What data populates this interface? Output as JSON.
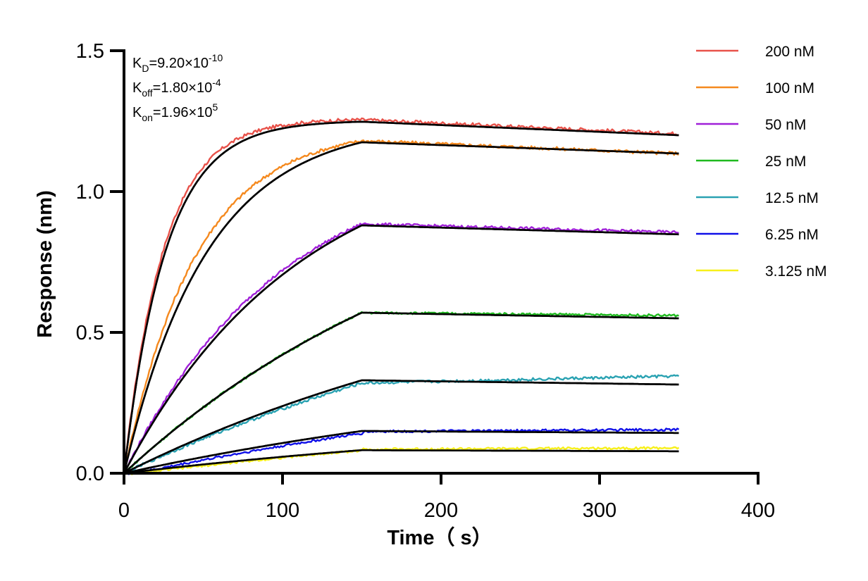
{
  "chart_data": {
    "type": "line",
    "title": "",
    "xlabel": "Time（ s）",
    "ylabel": "Response (nm)",
    "xlim": [
      0,
      400
    ],
    "ylim": [
      0,
      1.5
    ],
    "x_ticks": [
      "0",
      "100",
      "200",
      "300",
      "400"
    ],
    "y_ticks": [
      "0.0",
      "0.5",
      "1.0",
      "1.5"
    ],
    "grid": false,
    "legend_position": "top-right",
    "association_end_s": 150,
    "dissociation_end_s": 350,
    "annotations": {
      "kd": {
        "base": "K",
        "sub": "D",
        "text": "=9.20×10",
        "sup": "-10"
      },
      "koff": {
        "base": "K",
        "sub": "off",
        "text": "=1.80×10",
        "sup": "-4"
      },
      "kon": {
        "base": "K",
        "sub": "on",
        "text": "=1.96×10",
        "sup": "5"
      }
    },
    "fit_line_color": "#000000",
    "series": [
      {
        "name": "200 nM",
        "color": "#e8524a",
        "plateau_at_150s": 1.255,
        "response_at_350s": 1.205
      },
      {
        "name": "100 nM",
        "color": "#f5891e",
        "plateau_at_150s": 1.18,
        "response_at_350s": 1.135
      },
      {
        "name": "50 nM",
        "color": "#a020d8",
        "plateau_at_150s": 0.885,
        "response_at_350s": 0.855
      },
      {
        "name": "25 nM",
        "color": "#1fba1f",
        "plateau_at_150s": 0.57,
        "response_at_350s": 0.56
      },
      {
        "name": "12.5 nM",
        "color": "#2aa2b2",
        "plateau_at_150s": 0.32,
        "response_at_350s": 0.345
      },
      {
        "name": "6.25 nM",
        "color": "#1010e8",
        "plateau_at_150s": 0.148,
        "response_at_350s": 0.155
      },
      {
        "name": "3.125 nM",
        "color": "#f7f01a",
        "plateau_at_150s": 0.085,
        "response_at_350s": 0.09
      }
    ],
    "fit_curves": [
      {
        "for": "200 nM",
        "plateau_at_150s": 1.248,
        "response_at_350s": 1.2
      },
      {
        "for": "100 nM",
        "plateau_at_150s": 1.175,
        "response_at_350s": 1.135
      },
      {
        "for": "50 nM",
        "plateau_at_150s": 0.88,
        "response_at_350s": 0.848
      },
      {
        "for": "25 nM",
        "plateau_at_150s": 0.57,
        "response_at_350s": 0.55
      },
      {
        "for": "12.5 nM",
        "plateau_at_150s": 0.33,
        "response_at_350s": 0.315
      },
      {
        "for": "6.25 nM",
        "plateau_at_150s": 0.15,
        "response_at_350s": 0.143
      },
      {
        "for": "3.125 nM",
        "plateau_at_150s": 0.082,
        "response_at_350s": 0.078
      }
    ]
  }
}
